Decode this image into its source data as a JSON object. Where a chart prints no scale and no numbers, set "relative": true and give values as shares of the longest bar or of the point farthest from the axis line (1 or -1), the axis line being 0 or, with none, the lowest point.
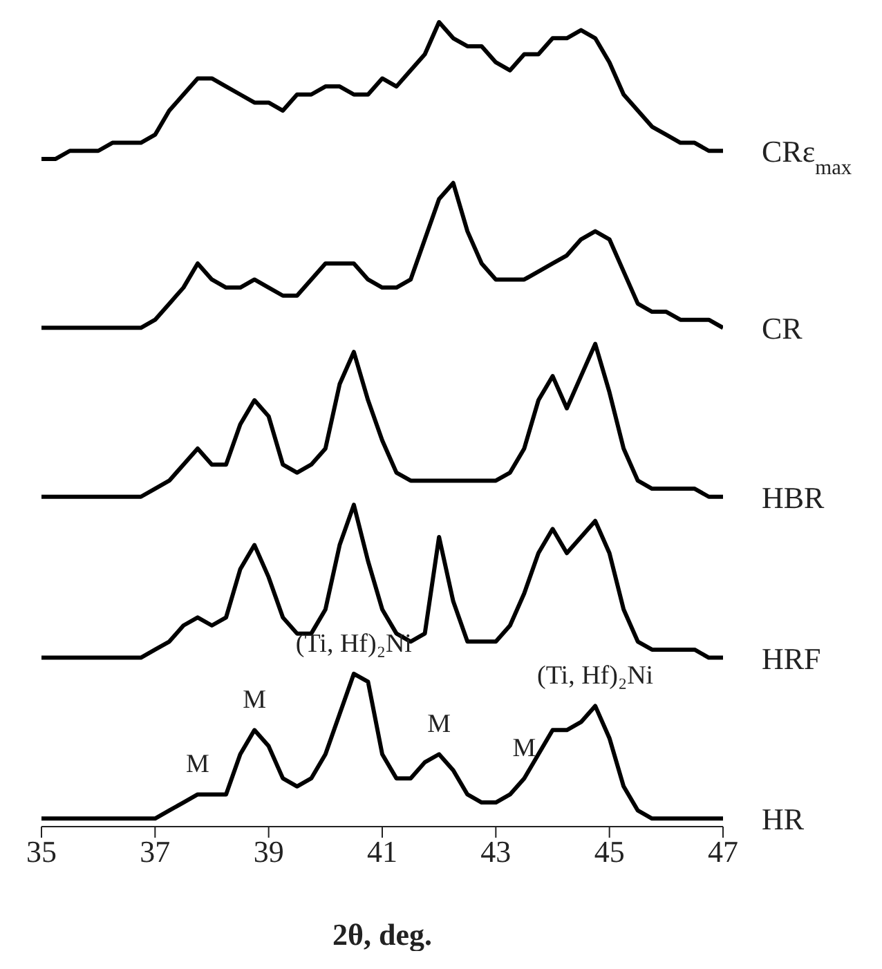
{
  "chart_data": {
    "type": "line",
    "relative": true,
    "xlabel": "2θ, deg.",
    "xlim": [
      35,
      47
    ],
    "xticks": [
      35,
      37,
      39,
      41,
      43,
      45,
      47
    ],
    "x": [
      35,
      35.25,
      35.5,
      35.75,
      36,
      36.25,
      36.5,
      36.75,
      37,
      37.25,
      37.5,
      37.75,
      38,
      38.25,
      38.5,
      38.75,
      39,
      39.25,
      39.5,
      39.75,
      40,
      40.25,
      40.5,
      40.75,
      41,
      41.25,
      41.5,
      41.75,
      42,
      42.25,
      42.5,
      42.75,
      43,
      43.25,
      43.5,
      43.75,
      44,
      44.25,
      44.5,
      44.75,
      45,
      45.25,
      45.5,
      45.75,
      46,
      46.25,
      46.5,
      46.75,
      47
    ],
    "series": [
      {
        "name": "CRε$_{max}$",
        "color": "#000000",
        "values": [
          0.83,
          0.83,
          0.84,
          0.84,
          0.84,
          0.85,
          0.85,
          0.85,
          0.86,
          0.89,
          0.91,
          0.93,
          0.93,
          0.92,
          0.91,
          0.9,
          0.9,
          0.89,
          0.91,
          0.91,
          0.92,
          0.92,
          0.91,
          0.91,
          0.93,
          0.92,
          0.94,
          0.96,
          1.0,
          0.98,
          0.97,
          0.97,
          0.95,
          0.94,
          0.96,
          0.96,
          0.98,
          0.98,
          0.99,
          0.98,
          0.95,
          0.91,
          0.89,
          0.87,
          0.86,
          0.85,
          0.85,
          0.84,
          0.84
        ]
      },
      {
        "name": "CR",
        "color": "#000000",
        "values": [
          0.62,
          0.62,
          0.62,
          0.62,
          0.62,
          0.62,
          0.62,
          0.62,
          0.63,
          0.65,
          0.67,
          0.7,
          0.68,
          0.67,
          0.67,
          0.68,
          0.67,
          0.66,
          0.66,
          0.68,
          0.7,
          0.7,
          0.7,
          0.68,
          0.67,
          0.67,
          0.68,
          0.73,
          0.78,
          0.8,
          0.74,
          0.7,
          0.68,
          0.68,
          0.68,
          0.69,
          0.7,
          0.71,
          0.73,
          0.74,
          0.73,
          0.69,
          0.65,
          0.64,
          0.64,
          0.63,
          0.63,
          0.63,
          0.62
        ]
      },
      {
        "name": "HBR",
        "color": "#000000",
        "values": [
          0.41,
          0.41,
          0.41,
          0.41,
          0.41,
          0.41,
          0.41,
          0.41,
          0.42,
          0.43,
          0.45,
          0.47,
          0.45,
          0.45,
          0.5,
          0.53,
          0.51,
          0.45,
          0.44,
          0.45,
          0.47,
          0.55,
          0.59,
          0.53,
          0.48,
          0.44,
          0.43,
          0.43,
          0.43,
          0.43,
          0.43,
          0.43,
          0.43,
          0.44,
          0.47,
          0.53,
          0.56,
          0.52,
          0.56,
          0.6,
          0.54,
          0.47,
          0.43,
          0.42,
          0.42,
          0.42,
          0.42,
          0.41,
          0.41
        ]
      },
      {
        "name": "HRF",
        "color": "#000000",
        "values": [
          0.21,
          0.21,
          0.21,
          0.21,
          0.21,
          0.21,
          0.21,
          0.21,
          0.22,
          0.23,
          0.25,
          0.26,
          0.25,
          0.26,
          0.32,
          0.35,
          0.31,
          0.26,
          0.24,
          0.24,
          0.27,
          0.35,
          0.4,
          0.33,
          0.27,
          0.24,
          0.23,
          0.24,
          0.36,
          0.28,
          0.23,
          0.23,
          0.23,
          0.25,
          0.29,
          0.34,
          0.37,
          0.34,
          0.36,
          0.38,
          0.34,
          0.27,
          0.23,
          0.22,
          0.22,
          0.22,
          0.22,
          0.21,
          0.21
        ]
      },
      {
        "name": "HR",
        "color": "#000000",
        "values": [
          0.01,
          0.01,
          0.01,
          0.01,
          0.01,
          0.01,
          0.01,
          0.01,
          0.01,
          0.02,
          0.03,
          0.04,
          0.04,
          0.04,
          0.09,
          0.12,
          0.1,
          0.06,
          0.05,
          0.06,
          0.09,
          0.14,
          0.19,
          0.18,
          0.09,
          0.06,
          0.06,
          0.08,
          0.09,
          0.07,
          0.04,
          0.03,
          0.03,
          0.04,
          0.06,
          0.09,
          0.12,
          0.12,
          0.13,
          0.15,
          0.11,
          0.05,
          0.02,
          0.01,
          0.01,
          0.01,
          0.01,
          0.01,
          0.01
        ]
      }
    ],
    "annotations": [
      {
        "text": "M",
        "x": 37.75,
        "y": 0.04
      },
      {
        "text": "M",
        "x": 38.75,
        "y": 0.12
      },
      {
        "text": "(Ti, Hf)₂Ni",
        "x": 40.5,
        "y": 0.19
      },
      {
        "text": "M",
        "x": 42,
        "y": 0.09
      },
      {
        "text": "M",
        "x": 43.5,
        "y": 0.06
      },
      {
        "text": "(Ti, Hf)₂Ni",
        "x": 44.75,
        "y": 0.15
      }
    ]
  }
}
